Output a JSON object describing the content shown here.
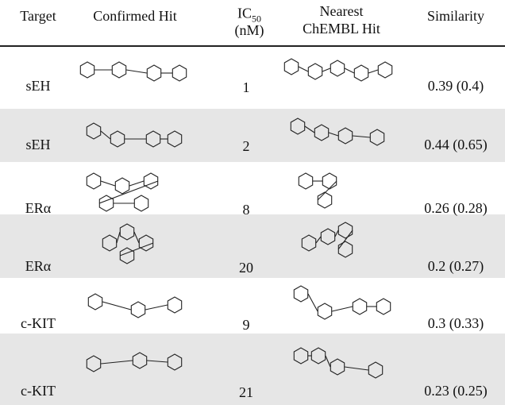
{
  "table": {
    "header": {
      "target": "Target",
      "confirmed_hit": "Confirmed Hit",
      "ic50": "IC",
      "ic50_sub": "50",
      "ic50_unit": "(nM)",
      "nearest_line1": "Nearest",
      "nearest_line2": "ChEMBL Hit",
      "similarity": "Similarity"
    },
    "rows": [
      [
        "sEH",
        1,
        "0.39 (0.4)"
      ],
      [
        "sEH",
        2,
        "0.44 (0.65)"
      ],
      [
        "ERα",
        8,
        "0.26 (0.28)"
      ],
      [
        "ERα",
        20,
        "0.2 (0.27)"
      ],
      [
        "c-KIT",
        9,
        "0.3 (0.33)"
      ],
      [
        "c-KIT",
        21,
        "0.23 (0.25)"
      ]
    ]
  }
}
